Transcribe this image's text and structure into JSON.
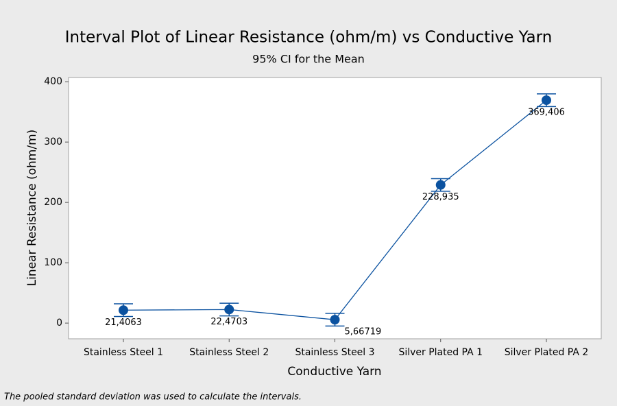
{
  "chart_data": {
    "type": "interval",
    "title": "Interval Plot of Linear Resistance (ohm/m) vs Conductive Yarn",
    "subtitle": "95% CI for the Mean",
    "x_label": "Conductive Yarn",
    "y_label": "Linear Resistance (ohm/m)",
    "footnote": "The pooled standard deviation was used to calculate the intervals.",
    "categories": [
      "Stainless Steel 1",
      "Stainless Steel 2",
      "Stainless Steel 3",
      "Silver Plated PA 1",
      "Silver Plated PA 2"
    ],
    "values": [
      21.4063,
      22.4703,
      5.66719,
      228.935,
      369.406
    ],
    "value_labels": [
      "21,4063",
      "22,4703",
      "5,66719",
      "228,935",
      "369,406"
    ],
    "errors": [
      10.5,
      10.5,
      10.5,
      10.5,
      10.5
    ],
    "color": "#0b52a0",
    "ylim": [
      -26,
      407
    ],
    "yticks": [
      0,
      100,
      200,
      300,
      400
    ]
  }
}
